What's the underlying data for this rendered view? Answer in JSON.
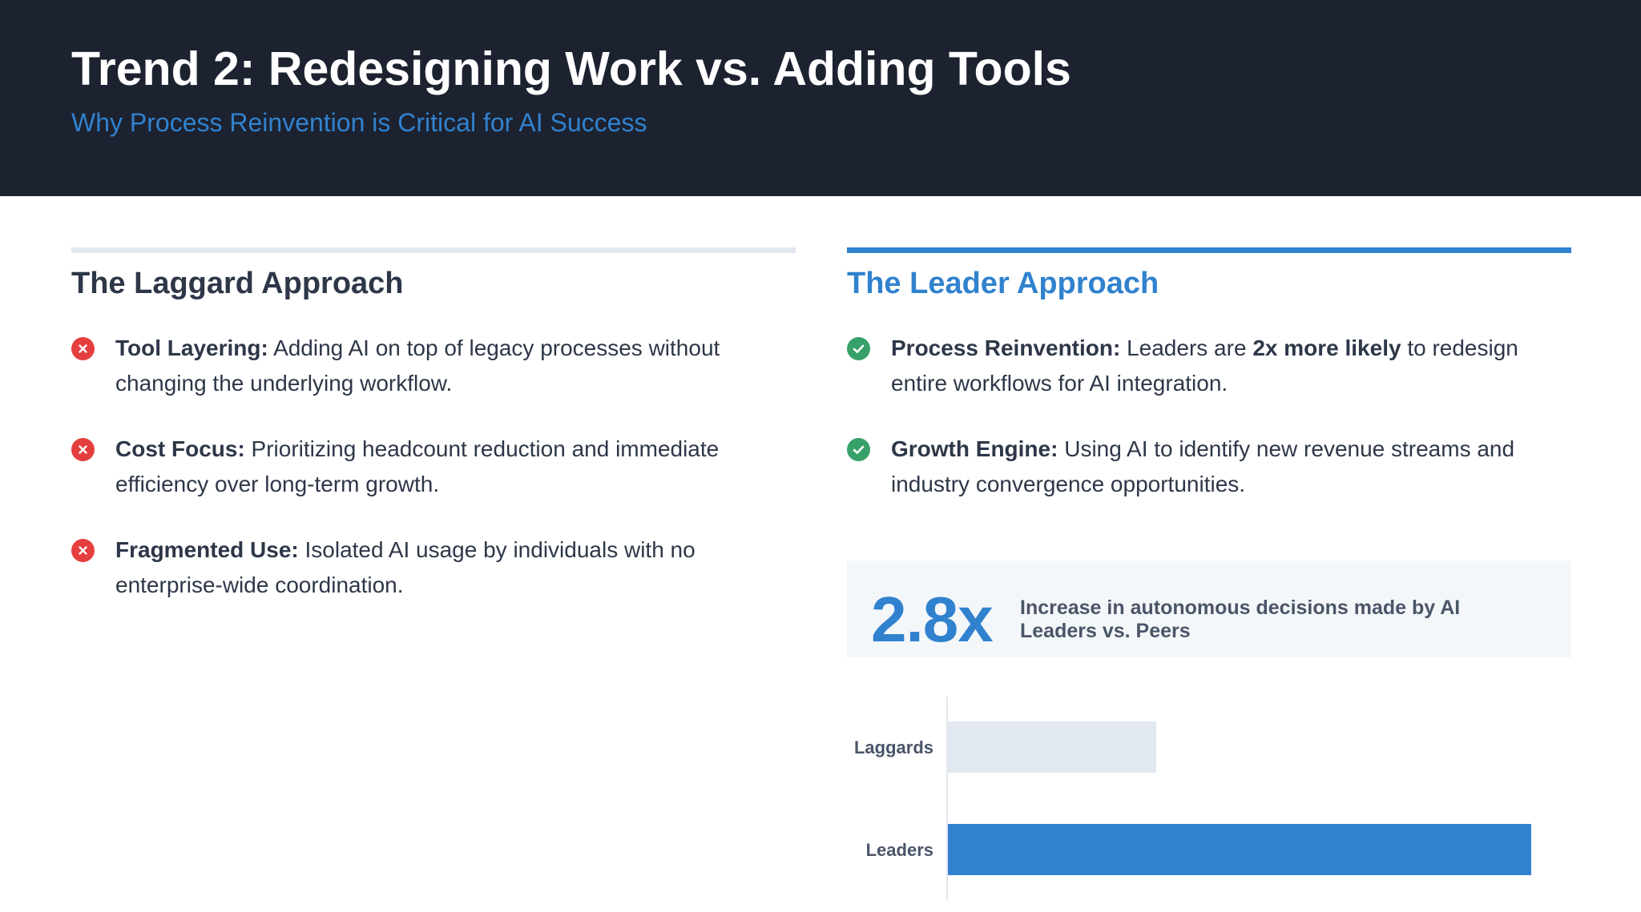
{
  "header": {
    "title": "Trend 2: Redesigning Work vs. Adding Tools",
    "subtitle": "Why Process Reinvention is Critical for AI Success"
  },
  "laggard": {
    "title": "The Laggard Approach",
    "items": [
      {
        "icon": "x-icon",
        "label": "Tool Layering:",
        "text": " Adding AI on top of legacy processes without changing the underlying workflow."
      },
      {
        "icon": "x-icon",
        "label": "Cost Focus:",
        "text": " Prioritizing headcount reduction and immediate efficiency over long-term growth."
      },
      {
        "icon": "x-icon",
        "label": "Fragmented Use:",
        "text": " Isolated AI usage by individuals with no enterprise-wide coordination."
      }
    ]
  },
  "leader": {
    "title": "The Leader Approach",
    "items": [
      {
        "icon": "check-icon",
        "label": "Process Reinvention:",
        "text_before": " Leaders are ",
        "emphasis": "2x more likely",
        "text_after": " to redesign entire workflows for AI integration."
      },
      {
        "icon": "check-icon",
        "label": "Growth Engine:",
        "text": " Using AI to identify new revenue streams and industry convergence opportunities."
      }
    ]
  },
  "stat": {
    "value": "2.8x",
    "text": "Increase in autonomous decisions made by AI Leaders vs. Peers"
  },
  "colors": {
    "header_bg": "#1c2230",
    "accent": "#3182ce",
    "negative": "#e53e3e",
    "positive": "#38a169",
    "laggard_bar": "#e2e8f0"
  },
  "chart_data": {
    "type": "bar",
    "orientation": "horizontal",
    "categories": [
      "Laggards",
      "Leaders"
    ],
    "values": [
      1,
      2.8
    ],
    "bar_colors": [
      "#e2e8f0",
      "#3182ce"
    ],
    "xlim": [
      0,
      3
    ],
    "title": "",
    "xlabel": "",
    "ylabel": "",
    "grid": false
  }
}
